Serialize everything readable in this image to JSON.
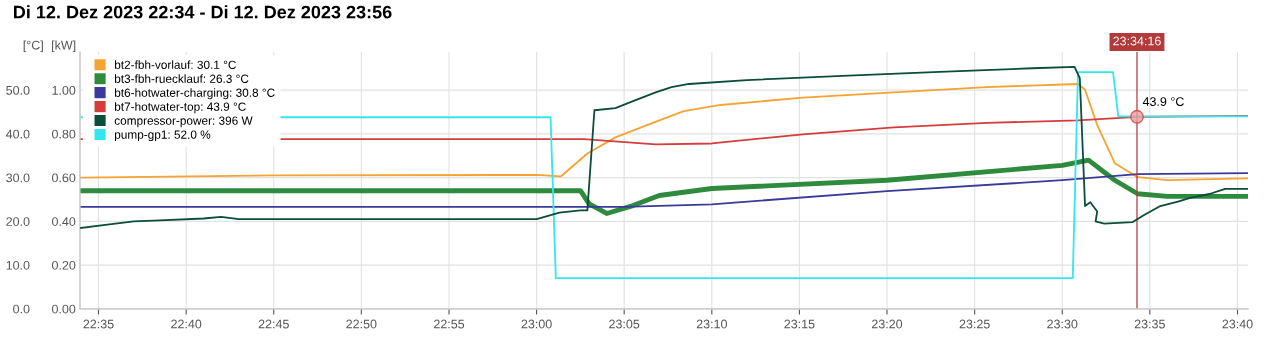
{
  "chart_data": {
    "type": "line",
    "title": "Di 12. Dez 2023 22:34 - Di 12. Dez 2023 23:56",
    "ylabel": "[°C]",
    "y2label": "[kW]",
    "xlim": [
      22.5657,
      23.6767
    ],
    "ylim": [
      0,
      58.7
    ],
    "y2lim": [
      0,
      1.174
    ],
    "xticks": [
      {
        "value": 22.5833,
        "label": "22:35"
      },
      {
        "value": 22.6667,
        "label": "22:40"
      },
      {
        "value": 22.75,
        "label": "22:45"
      },
      {
        "value": 22.8333,
        "label": "22:50"
      },
      {
        "value": 22.9167,
        "label": "22:55"
      },
      {
        "value": 23.0,
        "label": "23:00"
      },
      {
        "value": 23.0833,
        "label": "23:05"
      },
      {
        "value": 23.1667,
        "label": "23:10"
      },
      {
        "value": 23.25,
        "label": "23:15"
      },
      {
        "value": 23.3333,
        "label": "23:20"
      },
      {
        "value": 23.4167,
        "label": "23:25"
      },
      {
        "value": 23.5,
        "label": "23:30"
      },
      {
        "value": 23.5833,
        "label": "23:35"
      },
      {
        "value": 23.6667,
        "label": "23:40"
      }
    ],
    "yticks": [
      {
        "value": 0,
        "label": "0.0"
      },
      {
        "value": 10,
        "label": "10.0"
      },
      {
        "value": 20,
        "label": "20.0"
      },
      {
        "value": 30,
        "label": "30.0"
      },
      {
        "value": 40,
        "label": "40.0"
      },
      {
        "value": 50,
        "label": "50.0"
      }
    ],
    "y2ticks": [
      {
        "value": 0,
        "label": "0.00"
      },
      {
        "value": 0.2,
        "label": "0.20"
      },
      {
        "value": 0.4,
        "label": "0.40"
      },
      {
        "value": 0.6,
        "label": "0.60"
      },
      {
        "value": 0.8,
        "label": "0.80"
      },
      {
        "value": 1.0,
        "label": "1.00"
      }
    ],
    "grid": true,
    "legend": "top left",
    "ref_lines": [
      {
        "axis": "x",
        "value": 23.5711,
        "color": "#b23a3a"
      }
    ],
    "annotations": [
      "23:34:16",
      {
        "text": "43.9 °C",
        "x": 23.5711,
        "y": 43.9
      }
    ],
    "series": [
      {
        "name": "bt2-fbh-vorlauf: 30.1 °C",
        "color": "#f5a332",
        "x": [
          22.5667,
          22.75,
          23.0,
          23.0233,
          23.0483,
          23.075,
          23.105,
          23.14,
          23.175,
          23.2533,
          23.34,
          23.4283,
          23.515,
          23.5217,
          23.5333,
          23.55,
          23.5717,
          23.6,
          23.6767
        ],
        "values": [
          30.0,
          30.5,
          30.6,
          30.3,
          35.5,
          39.2,
          42.0,
          45.2,
          46.6,
          48.3,
          49.5,
          50.7,
          51.4,
          50.1,
          42.0,
          33.3,
          30.1,
          29.4,
          29.8
        ]
      },
      {
        "name": "bt3-fbh-ruecklauf: 26.3 °C",
        "color": "#2e8b3e",
        "x": [
          22.5667,
          23.0417,
          23.05,
          23.0667,
          23.0917,
          23.1167,
          23.1667,
          23.3333,
          23.5,
          23.525,
          23.55,
          23.5717,
          23.6,
          23.6767
        ],
        "values": [
          27.0,
          27.0,
          24.0,
          21.8,
          23.6,
          25.9,
          27.5,
          29.4,
          32.8,
          34.0,
          29.4,
          26.3,
          25.7,
          25.7
        ]
      },
      {
        "name": "bt6-hotwater-charging: 30.8 °C",
        "color": "#3a3a9a",
        "x": [
          22.5667,
          23.0833,
          23.1667,
          23.3333,
          23.5,
          23.5717,
          23.6767
        ],
        "values": [
          23.3,
          23.3,
          23.9,
          26.9,
          29.4,
          30.8,
          31.0
        ]
      },
      {
        "name": "bt7-hotwater-top: 43.9 °C",
        "color": "#d63c3c",
        "x": [
          22.5667,
          23.045,
          23.1133,
          23.1667,
          23.2533,
          23.34,
          23.4283,
          23.515,
          23.5717,
          23.6767
        ],
        "values": [
          38.8,
          38.8,
          37.6,
          37.8,
          39.9,
          41.5,
          42.5,
          43.1,
          43.9,
          44.1
        ]
      },
      {
        "name": "compressor-power: 396 W",
        "color": "#0b4d3a",
        "axis": "y2",
        "x": [
          22.5667,
          22.5917,
          22.6167,
          22.6417,
          22.6833,
          22.7,
          22.7167,
          23.0,
          23.0217,
          23.0417,
          23.0483,
          23.055,
          23.075,
          23.0917,
          23.1133,
          23.1283,
          23.145,
          23.2,
          23.2967,
          23.3833,
          23.4717,
          23.5117,
          23.5167,
          23.5217,
          23.5267,
          23.5333,
          23.5317,
          23.54,
          23.5667,
          23.5783,
          23.5933,
          23.61,
          23.6217,
          23.64,
          23.655,
          23.6767
        ],
        "values": [
          0.37,
          0.385,
          0.4,
          0.404,
          0.413,
          0.42,
          0.41,
          0.41,
          0.44,
          0.45,
          0.45,
          0.908,
          0.918,
          0.95,
          0.99,
          1.014,
          1.028,
          1.046,
          1.066,
          1.083,
          1.1,
          1.106,
          1.055,
          0.47,
          0.487,
          0.445,
          0.4,
          0.39,
          0.396,
          0.43,
          0.47,
          0.49,
          0.507,
          0.525,
          0.548,
          0.548
        ]
      },
      {
        "name": "pump-gp1: 52.0 %",
        "color": "#33e6f0",
        "x": [
          22.5667,
          23.0133,
          23.0183,
          23.51,
          23.515,
          23.5483,
          23.5533,
          23.6767
        ],
        "values": [
          43.8,
          43.8,
          7.0,
          7.0,
          54.1,
          54.1,
          44.0,
          44.0
        ]
      }
    ]
  }
}
